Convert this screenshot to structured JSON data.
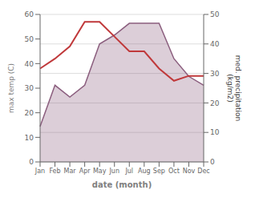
{
  "chart_data": {
    "type": "line",
    "xlabel": "date (month)",
    "ylabel": "max temp (C)",
    "y2label": "med. precipitation\n(kg/m2)",
    "categories": [
      "Jan",
      "Feb",
      "Mar",
      "Apr",
      "May",
      "Jun",
      "Jul",
      "Aug",
      "Sep",
      "Oct",
      "Nov",
      "Dec"
    ],
    "series": [
      {
        "type": "area",
        "axis": "y2",
        "color": "#8b5e7e",
        "values": [
          12,
          26,
          22,
          26,
          40,
          43,
          47,
          47,
          47,
          35,
          29,
          26
        ]
      },
      {
        "type": "line",
        "color": "#c0393b",
        "values": [
          38,
          42,
          47,
          57,
          57,
          51,
          45,
          45,
          38,
          33,
          35,
          35
        ]
      }
    ],
    "ylim": [
      0,
      60
    ],
    "yticks": [
      0,
      10,
      20,
      30,
      40,
      50,
      60
    ],
    "y2lim": [
      0,
      50
    ],
    "y2ticks": [
      0,
      10,
      20,
      30,
      40,
      50
    ],
    "grid": true
  }
}
